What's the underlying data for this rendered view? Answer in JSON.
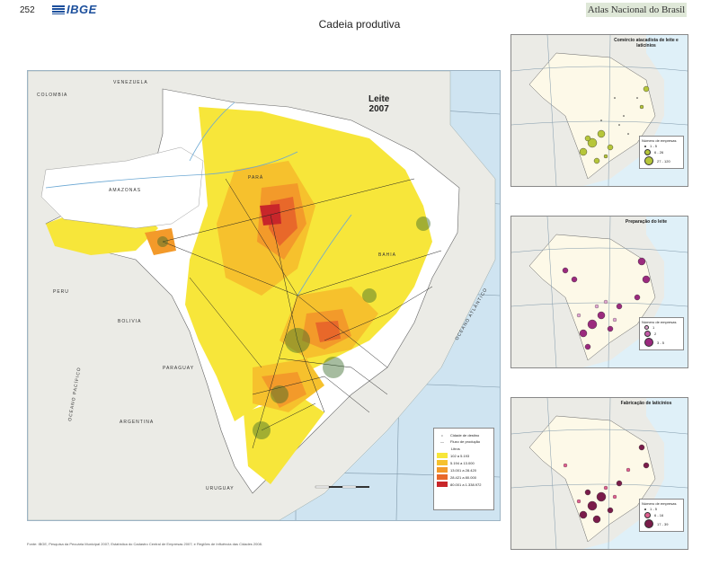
{
  "header": {
    "page_number": "252",
    "publisher": "IBGE",
    "atlas": "Atlas Nacional do Brasil"
  },
  "section_title": "Cadeia produtiva",
  "main_map": {
    "title_line1": "Leite",
    "title_line2": "2007",
    "countries": [
      "VENEZUELA",
      "COLOMBIA",
      "PERU",
      "BOLIVIA",
      "PARAGUAY",
      "ARGENTINA",
      "URUGUAY"
    ],
    "states": [
      "AMAZONAS",
      "PARÁ",
      "BAHIA"
    ],
    "oceans": [
      "OCEANO ATLÂNTICO",
      "OCEANO PACÍFICO"
    ],
    "legend": {
      "symbol1": "Cidade de destino",
      "symbol2": "Fluxo de produção",
      "classes_header": "Litros",
      "classes": [
        {
          "label": "102 a  5.193",
          "color": "#f7e63a"
        },
        {
          "label": "5.194 a  13.000",
          "color": "#f6c12d"
        },
        {
          "label": "13.001 a  28.420",
          "color": "#f39a2a"
        },
        {
          "label": "28.421 a  80.000",
          "color": "#e8682a"
        },
        {
          "label": "80.001 a 1.338.972",
          "color": "#c8262a"
        }
      ]
    }
  },
  "insets": [
    {
      "title": "Comércio atacadista de leite e laticínios",
      "legend_title": "Número de empresas",
      "classes": [
        "1 - 5",
        "6 - 26",
        "27 - 120"
      ],
      "color": "#b6c63a"
    },
    {
      "title": "Preparação do leite",
      "legend_title": "Número de empresas",
      "classes": [
        "1",
        "2",
        "3 - 5"
      ],
      "color": "#9b2a7e"
    },
    {
      "title": "Fabricação de laticínios",
      "legend_title": "Número de empresas",
      "classes": [
        "1 - 5",
        "6 - 16",
        "17 - 39"
      ],
      "color": "#7a1c4a"
    }
  ],
  "source": "Fonte: IBGE, Pesquisa da Pecuária Municipal 2007; Estatística do Cadastro Central de Empresas 2007; e Regiões de Influência das Cidades 2008."
}
